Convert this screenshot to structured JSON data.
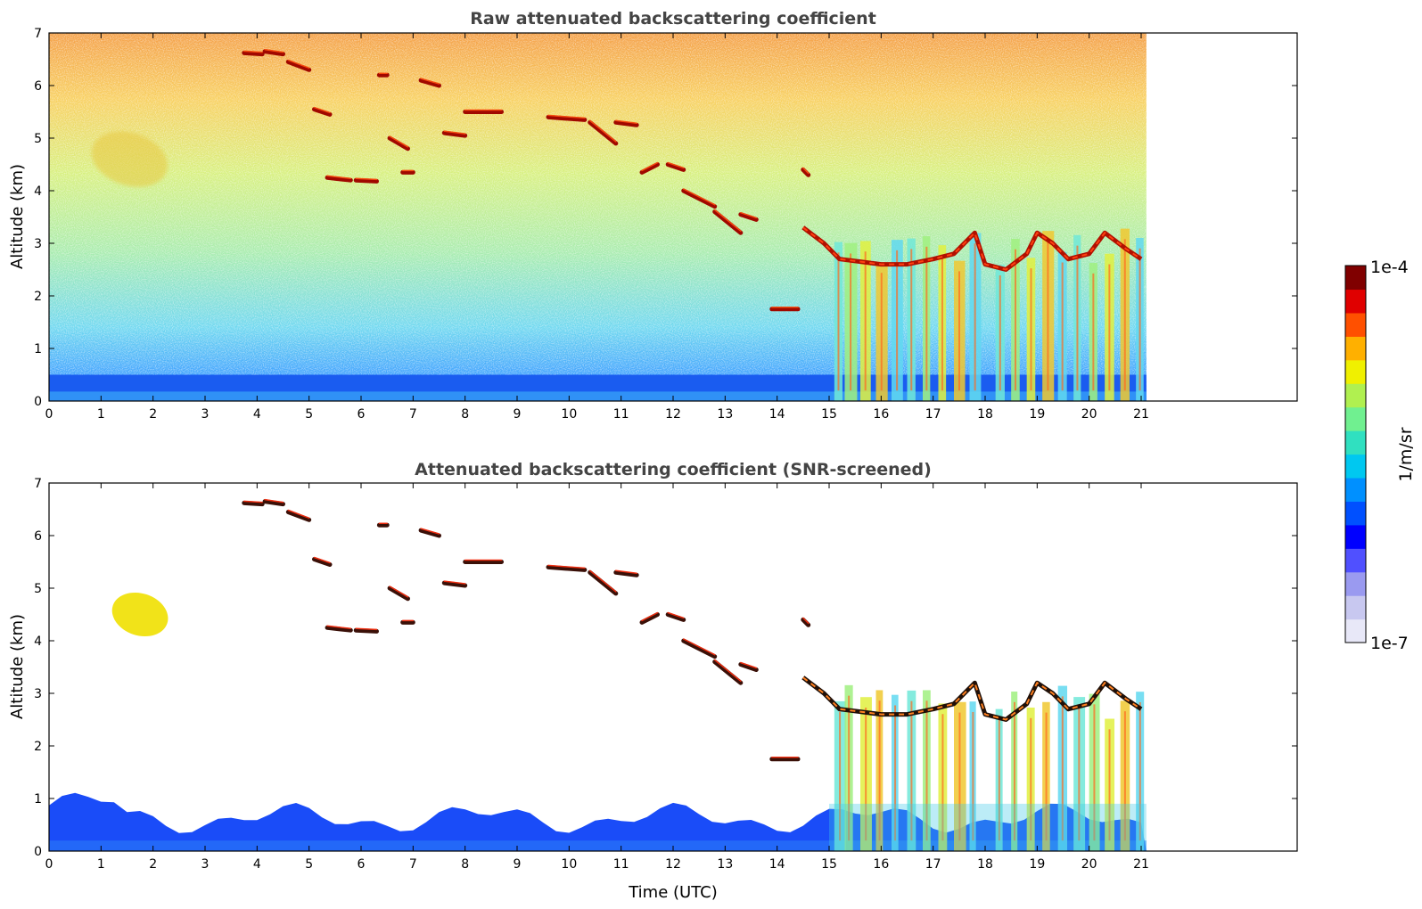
{
  "chart_data": [
    {
      "type": "heatmap",
      "title": "Raw attenuated backscattering coefficient",
      "xlabel": "",
      "ylabel": "Altitude (km)",
      "xlim": [
        0,
        24
      ],
      "ylim": [
        0,
        7
      ],
      "x_ticks": [
        "0",
        "1",
        "2",
        "3",
        "4",
        "5",
        "6",
        "7",
        "8",
        "9",
        "10",
        "11",
        "12",
        "13",
        "14",
        "15",
        "16",
        "17",
        "18",
        "19",
        "20",
        "21"
      ],
      "y_ticks": [
        "0",
        "1",
        "2",
        "3",
        "4",
        "5",
        "6",
        "7"
      ],
      "data_end_time": 21.1,
      "grid": false,
      "features": [
        {
          "kind": "surface_layer",
          "t": [
            0,
            21.1
          ],
          "top_km": 0.5
        },
        {
          "kind": "aerosol_plume",
          "t": [
            0.8,
            2.3
          ],
          "alt_km": [
            4.1,
            5.1
          ]
        },
        {
          "kind": "cirrus_band",
          "t": [
            3.7,
            14.6
          ],
          "alt_km": [
            3.2,
            6.7
          ]
        },
        {
          "kind": "low_cloud",
          "t": [
            14.4,
            21.1
          ],
          "alt_km": [
            2.4,
            3.6
          ]
        },
        {
          "kind": "precipitation_streaks",
          "t": [
            15.0,
            21.1
          ],
          "alt_km": [
            0,
            3.3
          ]
        }
      ]
    },
    {
      "type": "heatmap",
      "title": "Attenuated backscattering coefficient (SNR-screened)",
      "xlabel": "Time (UTC)",
      "ylabel": "Altitude (km)",
      "xlim": [
        0,
        24
      ],
      "ylim": [
        0,
        7
      ],
      "x_ticks": [
        "0",
        "1",
        "2",
        "3",
        "4",
        "5",
        "6",
        "7",
        "8",
        "9",
        "10",
        "11",
        "12",
        "13",
        "14",
        "15",
        "16",
        "17",
        "18",
        "19",
        "20",
        "21"
      ],
      "y_ticks": [
        "0",
        "1",
        "2",
        "3",
        "4",
        "5",
        "6",
        "7"
      ],
      "data_end_time": 21.1,
      "grid": false,
      "features": [
        {
          "kind": "boundary_layer",
          "t": [
            0,
            21.1
          ],
          "top_km": [
            0.5,
            1.0
          ]
        },
        {
          "kind": "aerosol_plume",
          "t": [
            1.2,
            2.3
          ],
          "alt_km": [
            4.1,
            4.9
          ]
        },
        {
          "kind": "cirrus_segments",
          "t": [
            3.7,
            14.6
          ],
          "alt_km": [
            3.2,
            6.7
          ]
        },
        {
          "kind": "low_cloud",
          "t": [
            14.6,
            21.1
          ],
          "alt_km": [
            2.4,
            3.6
          ]
        },
        {
          "kind": "precipitation_streaks",
          "t": [
            15.0,
            21.1
          ],
          "alt_km": [
            0,
            3.3
          ]
        }
      ]
    }
  ],
  "colorbar": {
    "max_label": "1e-4",
    "min_label": "1e-7",
    "unit_label": "1/m/sr",
    "scale": "log",
    "range": [
      1e-07,
      0.0001
    ],
    "colormap": [
      "#e8e8f8",
      "#c8c8f0",
      "#9a9af0",
      "#5050ff",
      "#0000ff",
      "#0050ff",
      "#0090ff",
      "#00c8f0",
      "#30e0c0",
      "#70f090",
      "#b0f050",
      "#f0f000",
      "#ffb000",
      "#ff5000",
      "#e00000",
      "#800000"
    ]
  }
}
